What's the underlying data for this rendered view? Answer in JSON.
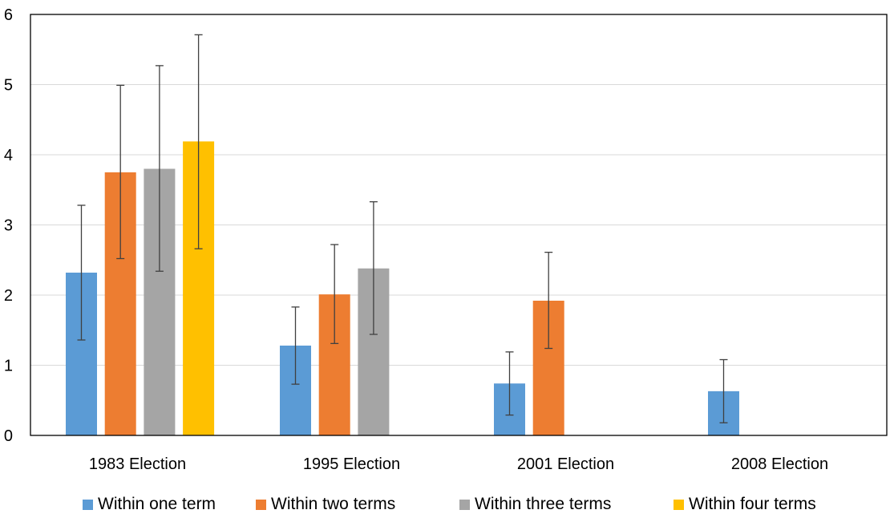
{
  "chart_data": {
    "type": "bar",
    "categories": [
      "1983 Election",
      "1995 Election",
      "2001 Election",
      "2008 Election"
    ],
    "series": [
      {
        "name": "Within one term",
        "color": "#5B9BD5",
        "values": [
          2.32,
          1.28,
          0.74,
          0.63
        ],
        "error_low": [
          1.36,
          0.73,
          0.29,
          0.18
        ],
        "error_high": [
          3.28,
          1.83,
          1.19,
          1.08
        ]
      },
      {
        "name": "Within two terms",
        "color": "#ED7D31",
        "values": [
          3.75,
          2.01,
          1.92,
          null
        ],
        "error_low": [
          2.52,
          1.31,
          1.24,
          null
        ],
        "error_high": [
          4.99,
          2.72,
          2.61,
          null
        ]
      },
      {
        "name": "Within three terms",
        "color": "#A5A5A5",
        "values": [
          3.8,
          2.38,
          null,
          null
        ],
        "error_low": [
          2.34,
          1.44,
          null,
          null
        ],
        "error_high": [
          5.27,
          3.33,
          null,
          null
        ]
      },
      {
        "name": "Within four terms",
        "color": "#FFC000",
        "values": [
          4.19,
          null,
          null,
          null
        ],
        "error_low": [
          2.66,
          null,
          null,
          null
        ],
        "error_high": [
          5.71,
          null,
          null,
          null
        ]
      }
    ],
    "yticks": [
      "0",
      "1",
      "2",
      "3",
      "4",
      "5",
      "6"
    ],
    "ylim": [
      0,
      6
    ],
    "grid": true,
    "legend_position": "bottom",
    "title": "",
    "xlabel": "",
    "ylabel": ""
  }
}
